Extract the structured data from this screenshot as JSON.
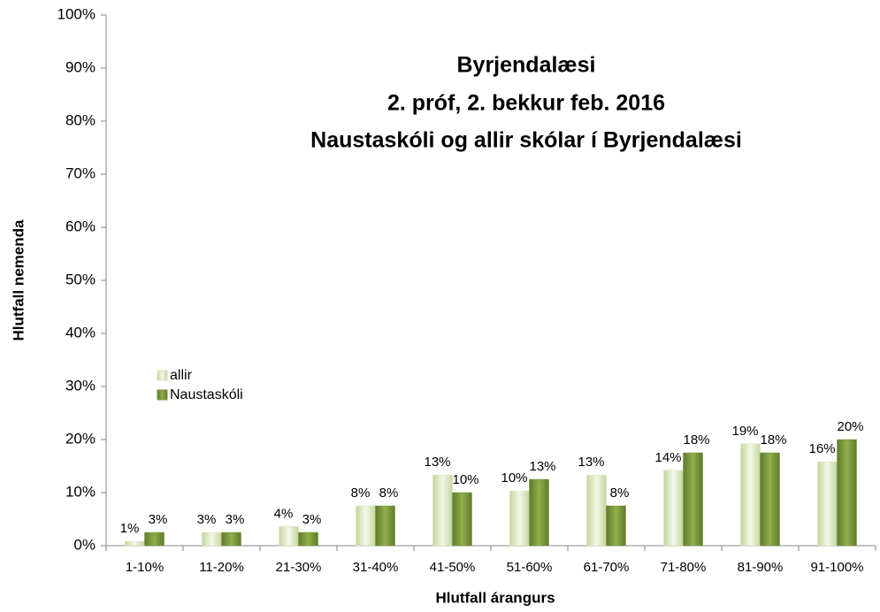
{
  "chart_data": {
    "type": "bar",
    "title": [
      "Byrjendalæsi",
      "2. próf, 2. bekkur feb. 2016",
      "Naustaskóli og allir skólar í Byrjendalæsi"
    ],
    "x_label": "Hlutfall árangurs",
    "y_label": "Hlutfall nemenda",
    "categories": [
      "1-10%",
      "11-20%",
      "21-30%",
      "31-40%",
      "41-50%",
      "51-60%",
      "61-70%",
      "71-80%",
      "81-90%",
      "91-100%"
    ],
    "series": [
      {
        "name": "allir",
        "color": "#d7e4bd",
        "values": [
          0.8,
          2.5,
          3.6,
          7.5,
          13.3,
          10.3,
          13.3,
          14.2,
          19.2,
          15.8
        ],
        "value_labels": [
          "1%",
          "3%",
          "4%",
          "8%",
          "13%",
          "10%",
          "13%",
          "14%",
          "19%",
          "16%"
        ]
      },
      {
        "name": "Naustaskóli",
        "color": "#77933c",
        "values": [
          2.5,
          2.5,
          2.5,
          7.5,
          10,
          12.5,
          7.5,
          17.5,
          17.5,
          20
        ],
        "value_labels": [
          "3%",
          "3%",
          "3%",
          "8%",
          "10%",
          "13%",
          "8%",
          "18%",
          "18%",
          "20%"
        ]
      }
    ],
    "ylim": [
      0,
      100
    ],
    "yticks": [
      {
        "value": 0,
        "label": "0%"
      },
      {
        "value": 10,
        "label": "10%"
      },
      {
        "value": 20,
        "label": "20%"
      },
      {
        "value": 30,
        "label": "30%"
      },
      {
        "value": 40,
        "label": "40%"
      },
      {
        "value": 50,
        "label": "50%"
      },
      {
        "value": 60,
        "label": "60%"
      },
      {
        "value": 70,
        "label": "70%"
      },
      {
        "value": 80,
        "label": "80%"
      },
      {
        "value": 90,
        "label": "90%"
      },
      {
        "value": 100,
        "label": "100%"
      }
    ],
    "grid": false,
    "legend": "left"
  }
}
